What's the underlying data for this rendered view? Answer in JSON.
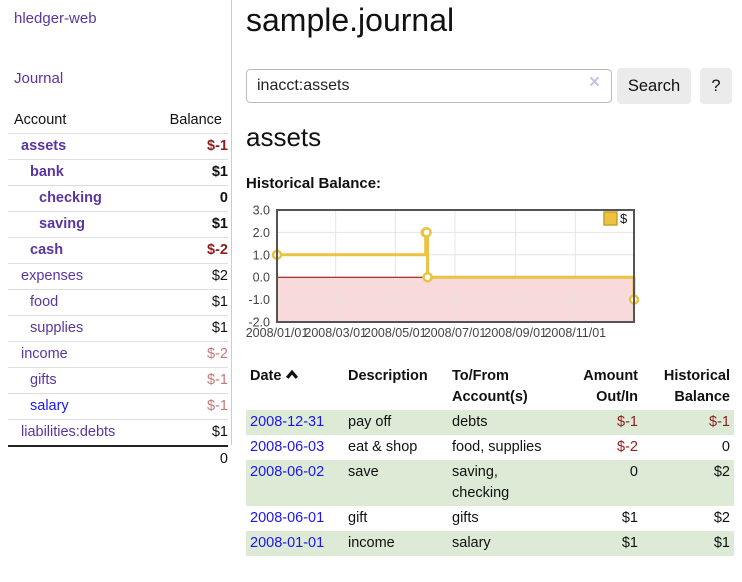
{
  "app": {
    "brand": "hledger-web"
  },
  "sidebar": {
    "journal_link": "Journal",
    "accounts_table": {
      "headers": {
        "account": "Account",
        "balance": "Balance"
      },
      "rows": [
        {
          "name": "assets",
          "balance": "$-1",
          "depth": 1,
          "bold": true,
          "neg": "dark",
          "link_style": "visited"
        },
        {
          "name": "bank",
          "balance": "$1",
          "depth": 2,
          "bold": true,
          "neg": null,
          "link_style": "visited"
        },
        {
          "name": "checking",
          "balance": "0",
          "depth": 3,
          "bold": true,
          "neg": null,
          "link_style": "visited"
        },
        {
          "name": "saving",
          "balance": "$1",
          "depth": 3,
          "bold": true,
          "neg": null,
          "link_style": "visited"
        },
        {
          "name": "cash",
          "balance": "$-2",
          "depth": 2,
          "bold": true,
          "neg": "dark",
          "link_style": "visited"
        },
        {
          "name": "expenses",
          "balance": "$2",
          "depth": 1,
          "bold": false,
          "neg": null,
          "link_style": "visited"
        },
        {
          "name": "food",
          "balance": "$1",
          "depth": 2,
          "bold": false,
          "neg": null,
          "link_style": "visited"
        },
        {
          "name": "supplies",
          "balance": "$1",
          "depth": 2,
          "bold": false,
          "neg": null,
          "link_style": "visited"
        },
        {
          "name": "income",
          "balance": "$-2",
          "depth": 1,
          "bold": false,
          "neg": "light",
          "link_style": "visited"
        },
        {
          "name": "gifts",
          "balance": "$-1",
          "depth": 2,
          "bold": false,
          "neg": "light",
          "link_style": "visited"
        },
        {
          "name": "salary",
          "balance": "$-1",
          "depth": 2,
          "bold": false,
          "neg": "light",
          "link_style": "unvisited"
        },
        {
          "name": "liabilities:debts",
          "balance": "$1",
          "depth": 1,
          "bold": false,
          "neg": null,
          "link_style": "visited"
        }
      ],
      "total": "0"
    }
  },
  "header": {
    "title": "sample.journal"
  },
  "search": {
    "value": "inacct:assets",
    "clear_icon": "×",
    "button": "Search",
    "help_button": "?"
  },
  "account_page": {
    "title": "assets",
    "chart_label": "Historical Balance:"
  },
  "chart_data": {
    "type": "line",
    "title": "Historical Balance:",
    "step": true,
    "x_range_days": [
      0,
      365
    ],
    "ylim": [
      -2,
      3
    ],
    "y_ticks": [
      3,
      2,
      1,
      0,
      -1,
      -2
    ],
    "x_ticks": [
      {
        "label": "2008/01/01",
        "day": 0
      },
      {
        "label": "2008/03/01",
        "day": 60
      },
      {
        "label": "2008/05/01",
        "day": 121
      },
      {
        "label": "2008/07/01",
        "day": 182
      },
      {
        "label": "2008/09/01",
        "day": 244
      },
      {
        "label": "2008/11/01",
        "day": 305
      }
    ],
    "series": [
      {
        "name": "$",
        "color": "#edc240",
        "points": [
          {
            "date": "2008-01-01",
            "day": 0,
            "value": 1
          },
          {
            "date": "2008-06-01",
            "day": 152,
            "value": 2
          },
          {
            "date": "2008-06-02",
            "day": 153,
            "value": 2
          },
          {
            "date": "2008-06-03",
            "day": 154,
            "value": 0
          },
          {
            "date": "2008-12-31",
            "day": 365,
            "value": -1
          }
        ]
      }
    ],
    "legend": {
      "label": "$",
      "position": "top-right"
    },
    "grid": true,
    "colors": {
      "negative_region": "#f9dada",
      "zero_line": "#8b0000",
      "grid_line": "#e4e4e4",
      "border": "#545454",
      "tick_text": "#444444",
      "legend_box_border": "#c7a12e"
    }
  },
  "register": {
    "headers": {
      "date": "Date",
      "sort_icon": "chevron-up",
      "description": "Description",
      "accounts": "To/From Account(s)",
      "amount": "Amount Out/In",
      "balance": "Historical Balance"
    },
    "rows": [
      {
        "date": "2008-12-31",
        "description": "pay off",
        "accounts": "debts",
        "amount": "$-1",
        "amount_neg": true,
        "balance": "$-1",
        "balance_neg": true
      },
      {
        "date": "2008-06-03",
        "description": "eat & shop",
        "accounts": "food, supplies",
        "amount": "$-2",
        "amount_neg": true,
        "balance": "0",
        "balance_neg": false
      },
      {
        "date": "2008-06-02",
        "description": "save",
        "accounts": "saving, checking",
        "amount": "0",
        "amount_neg": false,
        "balance": "$2",
        "balance_neg": false
      },
      {
        "date": "2008-06-01",
        "description": "gift",
        "accounts": "gifts",
        "amount": "$1",
        "amount_neg": false,
        "balance": "$2",
        "balance_neg": false
      },
      {
        "date": "2008-01-01",
        "description": "income",
        "accounts": "salary",
        "amount": "$1",
        "amount_neg": false,
        "balance": "$1",
        "balance_neg": false
      }
    ]
  },
  "colors": {
    "link_purple": "#5a35a2",
    "link_blue": "#1d17ee",
    "negative_dark": "#8f1d1d",
    "negative_light": "#c47878",
    "row_green": "#dcead6",
    "button_bg": "#ebebeb"
  }
}
